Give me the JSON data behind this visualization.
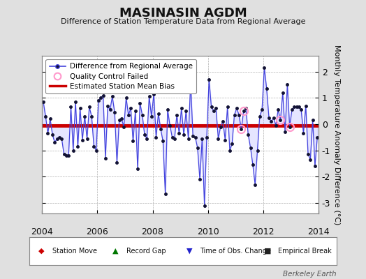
{
  "title": "MASINASIN AGDM",
  "subtitle": "Difference of Station Temperature Data from Regional Average",
  "ylabel": "Monthly Temperature Anomaly Difference (°C)",
  "xlim": [
    2004.0,
    2014.0
  ],
  "ylim": [
    -3.4,
    2.6
  ],
  "yticks": [
    -3,
    -2,
    -1,
    0,
    1,
    2
  ],
  "xticks": [
    2004,
    2006,
    2008,
    2010,
    2012,
    2014
  ],
  "bias_level": -0.05,
  "background_color": "#e0e0e0",
  "plot_bg_color": "#ffffff",
  "line_color": "#4444dd",
  "line_fill_color": "#aaaaff",
  "dot_color": "#111133",
  "bias_color": "#cc0000",
  "qc_fail_color": "#ff99cc",
  "watermark": "Berkeley Earth",
  "times": [
    2004.042,
    2004.125,
    2004.208,
    2004.292,
    2004.375,
    2004.458,
    2004.542,
    2004.625,
    2004.708,
    2004.792,
    2004.875,
    2004.958,
    2005.042,
    2005.125,
    2005.208,
    2005.292,
    2005.375,
    2005.458,
    2005.542,
    2005.625,
    2005.708,
    2005.792,
    2005.875,
    2005.958,
    2006.042,
    2006.125,
    2006.208,
    2006.292,
    2006.375,
    2006.458,
    2006.542,
    2006.625,
    2006.708,
    2006.792,
    2006.875,
    2006.958,
    2007.042,
    2007.125,
    2007.208,
    2007.292,
    2007.375,
    2007.458,
    2007.542,
    2007.625,
    2007.708,
    2007.792,
    2007.875,
    2007.958,
    2008.042,
    2008.125,
    2008.208,
    2008.292,
    2008.375,
    2008.458,
    2008.542,
    2008.625,
    2008.708,
    2008.792,
    2008.875,
    2008.958,
    2009.042,
    2009.125,
    2009.208,
    2009.292,
    2009.375,
    2009.458,
    2009.542,
    2009.625,
    2009.708,
    2009.792,
    2009.875,
    2009.958,
    2010.042,
    2010.125,
    2010.208,
    2010.292,
    2010.375,
    2010.458,
    2010.542,
    2010.625,
    2010.708,
    2010.792,
    2010.875,
    2010.958,
    2011.042,
    2011.125,
    2011.208,
    2011.292,
    2011.375,
    2011.458,
    2011.542,
    2011.625,
    2011.708,
    2011.792,
    2011.875,
    2011.958,
    2012.042,
    2012.125,
    2012.208,
    2012.292,
    2012.375,
    2012.458,
    2012.542,
    2012.625,
    2012.708,
    2012.792,
    2012.875,
    2012.958,
    2013.042,
    2013.125,
    2013.208,
    2013.292,
    2013.375,
    2013.458,
    2013.542,
    2013.625,
    2013.708,
    2013.792,
    2013.875,
    2013.958
  ],
  "values": [
    0.85,
    0.3,
    -0.35,
    0.2,
    -0.4,
    -0.7,
    -0.55,
    -0.5,
    -0.55,
    -1.15,
    -1.2,
    -1.2,
    0.65,
    -1.0,
    0.85,
    -0.85,
    0.6,
    -0.6,
    0.3,
    -0.55,
    0.65,
    0.3,
    -0.85,
    -1.0,
    0.9,
    1.0,
    1.1,
    -1.3,
    0.7,
    0.55,
    1.05,
    0.45,
    -1.45,
    0.15,
    0.2,
    -0.1,
    1.0,
    0.35,
    0.6,
    -0.65,
    0.5,
    -1.7,
    0.8,
    0.35,
    -0.4,
    -0.55,
    1.05,
    0.3,
    1.15,
    -0.5,
    0.4,
    -0.2,
    -0.65,
    -2.65,
    0.55,
    -0.05,
    -0.5,
    -0.55,
    0.35,
    -0.35,
    0.6,
    -0.4,
    0.5,
    -0.55,
    1.6,
    -0.45,
    -0.5,
    -0.9,
    -2.1,
    -0.55,
    -3.1,
    -0.5,
    1.7,
    0.65,
    0.5,
    0.6,
    -0.55,
    -0.1,
    0.1,
    -0.6,
    0.65,
    -1.0,
    -0.75,
    0.35,
    0.6,
    0.35,
    -0.2,
    0.5,
    0.6,
    -0.4,
    -0.9,
    -1.55,
    -2.3,
    -1.0,
    0.3,
    0.55,
    2.15,
    1.35,
    0.25,
    0.1,
    0.25,
    -0.05,
    0.55,
    0.15,
    1.2,
    -0.3,
    1.5,
    -0.1,
    0.55,
    0.65,
    0.65,
    0.65,
    0.55,
    -0.35,
    0.7,
    -1.15,
    -1.35,
    0.15,
    -1.6,
    -0.5
  ],
  "qc_fail_indices": [
    86,
    87,
    103,
    107
  ],
  "title_fontsize": 13,
  "subtitle_fontsize": 8,
  "tick_fontsize": 9,
  "legend_fontsize": 7.5,
  "ylabel_fontsize": 8
}
